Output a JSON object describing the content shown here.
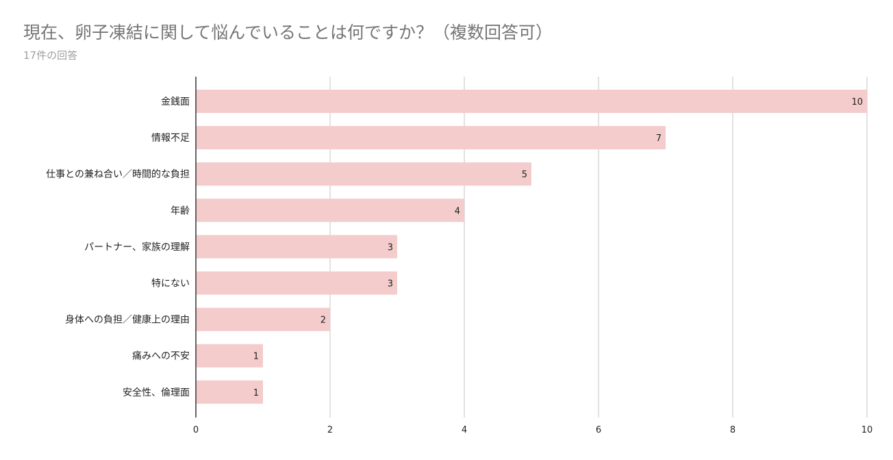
{
  "chart_data": {
    "type": "bar",
    "orientation": "horizontal",
    "title": "現在、卵子凍結に関して悩んでいることは何ですか？（複数回答可）",
    "subtitle": "17件の回答",
    "categories": [
      "金銭面",
      "情報不足",
      "仕事との兼ね合い／時間的な負担",
      "年齢",
      "パートナー、家族の理解",
      "特にない",
      "身体への負担／健康上の理由",
      "痛みへの不安",
      "安全性、倫理面"
    ],
    "values": [
      10,
      7,
      5,
      4,
      3,
      3,
      2,
      1,
      1
    ],
    "xlim": [
      0,
      10
    ],
    "xticks": [
      0,
      2,
      4,
      6,
      8,
      10
    ],
    "grid": true,
    "bar_color": "#f4cccc",
    "grid_color": "#d9d9d9",
    "axis_color": "#333333"
  }
}
